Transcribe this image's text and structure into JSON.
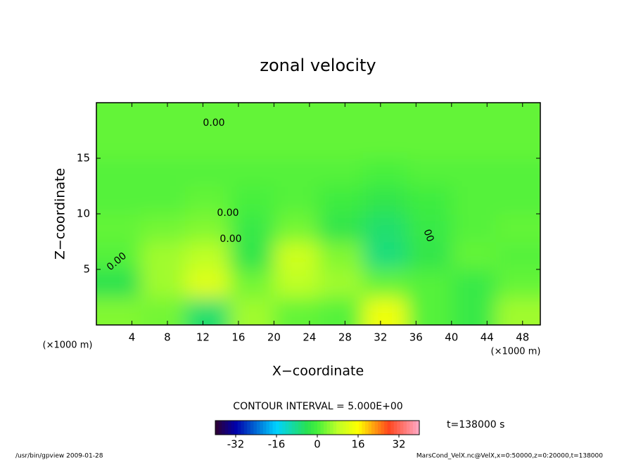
{
  "chart_data": {
    "type": "heatmap",
    "title": "zonal velocity",
    "x_label": "X−coordinate",
    "y_label": "Z−coordinate",
    "x_unit": "(×1000 m)",
    "y_unit": "(×1000 m)",
    "x": [
      2.5,
      7.5,
      12.5,
      17.5,
      22.5,
      27.5,
      32.5,
      37.5,
      42.5,
      47.5
    ],
    "y": [
      1.25,
      3.75,
      6.25,
      8.75,
      11.25,
      13.75,
      16.25,
      18.75
    ],
    "values": [
      [
        4,
        3,
        -6,
        6,
        2,
        1,
        14,
        1,
        -2,
        6
      ],
      [
        -4,
        6,
        12,
        3,
        8,
        6,
        2,
        1,
        -2,
        2
      ],
      [
        1,
        6,
        8,
        -3,
        10,
        4,
        -7,
        -3,
        2,
        1
      ],
      [
        2,
        3,
        4,
        -2,
        3,
        -3,
        -6,
        -2,
        1,
        2
      ],
      [
        1,
        1,
        2,
        0,
        1,
        -1,
        -3,
        -1,
        1,
        1
      ],
      [
        1,
        1,
        1,
        1,
        1,
        1,
        0,
        1,
        1,
        1
      ],
      [
        2,
        2,
        2,
        2,
        2,
        2,
        2,
        2,
        2,
        2
      ],
      [
        2,
        2,
        2,
        2,
        2,
        2,
        2,
        2,
        2,
        2
      ]
    ],
    "xlim": [
      0,
      50
    ],
    "xticks": [
      4,
      8,
      12,
      16,
      20,
      24,
      28,
      32,
      36,
      40,
      44,
      48
    ],
    "ylim": [
      0,
      20
    ],
    "yticks": [
      5,
      10,
      15
    ],
    "contour_labels": [
      "0.00",
      "0.00",
      "0.00",
      "0.00",
      "00"
    ],
    "contour_interval": "CONTOUR INTERVAL = 5.000E+00",
    "clim": [
      -40,
      40
    ],
    "cticks": [
      -32,
      -16,
      0,
      16,
      32
    ],
    "time": "t=138000 s",
    "footer_left": "/usr/bin/gpview  2009-01-28",
    "footer_right": "MarsCond_VelX.nc@VelX,x=0:50000,z=0:20000,t=138000"
  }
}
